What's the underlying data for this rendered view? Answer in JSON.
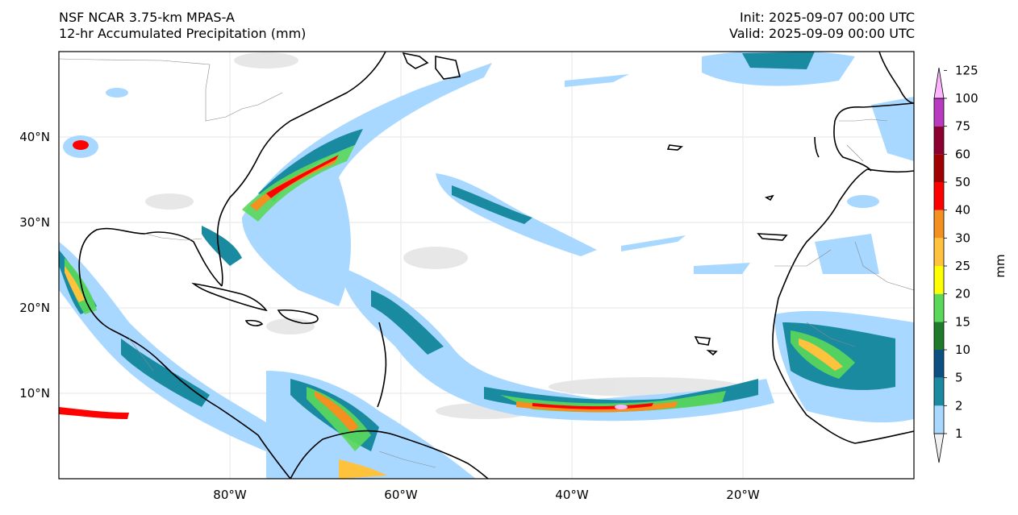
{
  "title": {
    "model": "NSF NCAR 3.75-km MPAS-A",
    "field": "12-hr Accumulated Precipitation (mm)",
    "init": "Init: 2025-09-07 00:00 UTC",
    "valid": "Valid: 2025-09-09 00:00 UTC"
  },
  "axes": {
    "x_ticks": [
      {
        "lon": -80,
        "label": "80°W"
      },
      {
        "lon": -60,
        "label": "60°W"
      },
      {
        "lon": -40,
        "label": "40°W"
      },
      {
        "lon": -20,
        "label": "20°W"
      }
    ],
    "y_ticks": [
      {
        "lat": 40,
        "label": "40°N"
      },
      {
        "lat": 30,
        "label": "30°N"
      },
      {
        "lat": 20,
        "label": "20°N"
      },
      {
        "lat": 10,
        "label": "10°N"
      }
    ],
    "lon_range": [
      -100,
      0
    ],
    "lat_range": [
      0,
      50
    ]
  },
  "colorbar": {
    "unit_label": "mm",
    "levels": [
      "1",
      "2",
      "5",
      "10",
      "15",
      "20",
      "25",
      "30",
      "40",
      "50",
      "60",
      "75",
      "100",
      "125"
    ],
    "colors": [
      "#f0f0f0",
      "#a8d8ff",
      "#1a8aa0",
      "#0b5080",
      "#1f7a2a",
      "#5ad85a",
      "#ffff00",
      "#ffc23c",
      "#f39020",
      "#ff0000",
      "#a00000",
      "#8b0030",
      "#b83ac0",
      "#ffb4ff"
    ]
  }
}
